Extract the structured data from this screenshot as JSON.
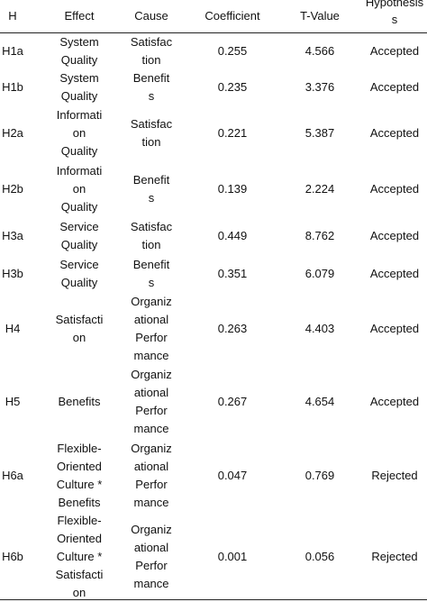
{
  "headers": {
    "h": "H",
    "effect": "Effect",
    "cause": "Cause",
    "coefficient": "Coefficient",
    "tvalue": "T-Value",
    "hypothesis": "Hypothesis\ns"
  },
  "rows": [
    {
      "h": "H1a",
      "effect": "System\nQuality",
      "cause": "Satisfac\ntion",
      "coefficient": "0.255",
      "tvalue": "4.566",
      "hypothesis": "Accepted"
    },
    {
      "h": "H1b",
      "effect": "System\nQuality",
      "cause": "Benefit\ns",
      "coefficient": "0.235",
      "tvalue": "3.376",
      "hypothesis": "Accepted"
    },
    {
      "h": "H2a",
      "effect": "Informati\non\nQuality",
      "cause": "Satisfac\ntion",
      "coefficient": "0.221",
      "tvalue": "5.387",
      "hypothesis": "Accepted"
    },
    {
      "h": "H2b",
      "effect": "Informati\non\nQuality",
      "cause": "Benefit\ns",
      "coefficient": "0.139",
      "tvalue": "2.224",
      "hypothesis": "Accepted"
    },
    {
      "h": "H3a",
      "effect": "Service\nQuality",
      "cause": "Satisfac\ntion",
      "coefficient": "0.449",
      "tvalue": "8.762",
      "hypothesis": "Accepted"
    },
    {
      "h": "H3b",
      "effect": "Service\nQuality",
      "cause": "Benefit\ns",
      "coefficient": "0.351",
      "tvalue": "6.079",
      "hypothesis": "Accepted"
    },
    {
      "h": "H4",
      "effect": "Satisfacti\non",
      "cause": "Organiz\national\nPerfor\nmance",
      "coefficient": "0.263",
      "tvalue": "4.403",
      "hypothesis": "Accepted"
    },
    {
      "h": "H5",
      "effect": "Benefits",
      "cause": "Organiz\national\nPerfor\nmance",
      "coefficient": "0.267",
      "tvalue": "4.654",
      "hypothesis": "Accepted"
    },
    {
      "h": "H6a",
      "effect": "Flexible-\nOriented\nCulture *\nBenefits",
      "cause": "Organiz\national\nPerfor\nmance",
      "coefficient": "0.047",
      "tvalue": "0.769",
      "hypothesis": "Rejected"
    },
    {
      "h": "H6b",
      "effect": "Flexible-\nOriented\nCulture *\nSatisfacti\non",
      "cause": "Organiz\national\nPerfor\nmance",
      "coefficient": "0.001",
      "tvalue": "0.056",
      "hypothesis": "Rejected"
    }
  ]
}
